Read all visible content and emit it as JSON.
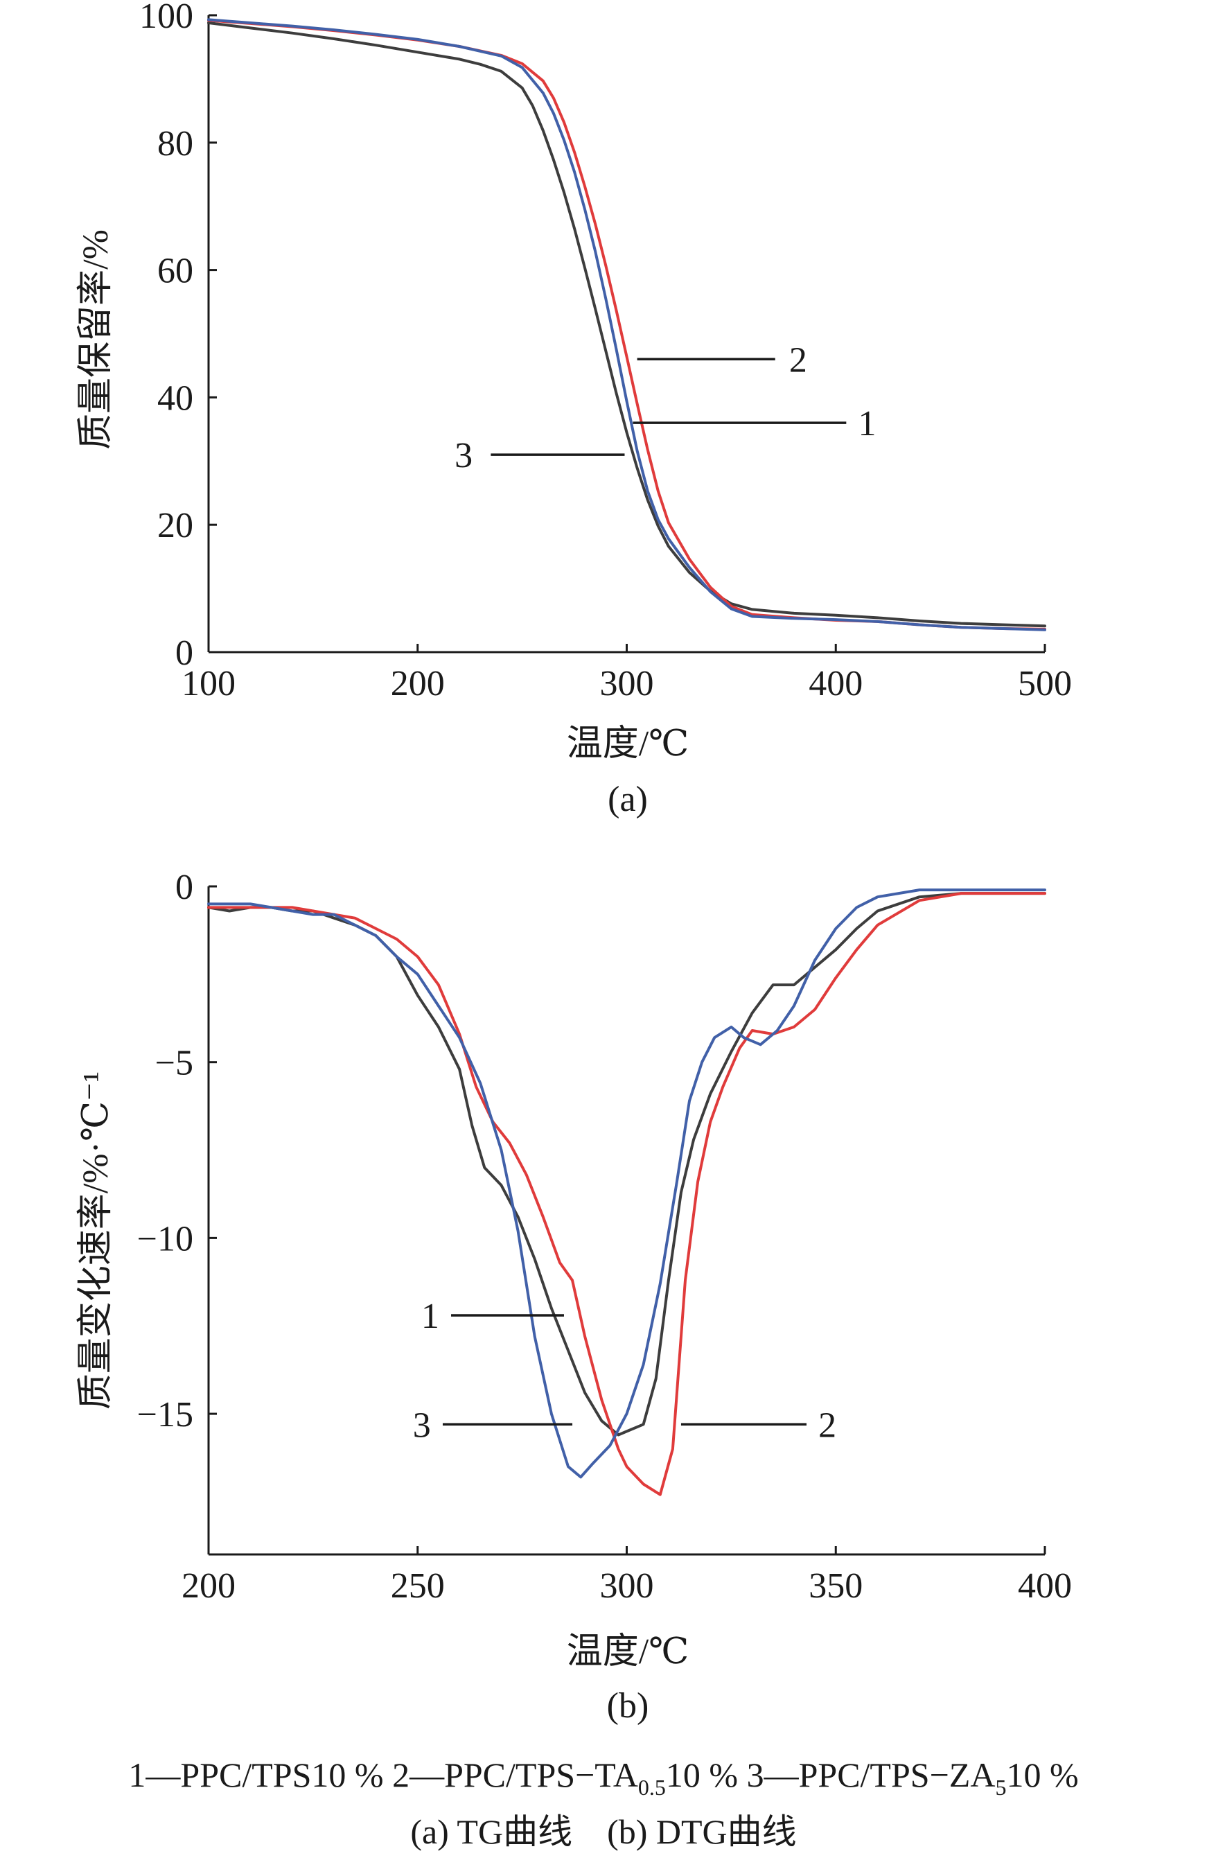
{
  "chart_data": [
    {
      "id": "a",
      "type": "line",
      "caption": "(a)",
      "xlabel": "温度/℃",
      "ylabel": "质量保留率/%",
      "xlim": [
        100,
        500
      ],
      "ylim": [
        0,
        100
      ],
      "xticks": [
        100,
        200,
        300,
        400,
        500
      ],
      "yticks": [
        0,
        20,
        40,
        60,
        80,
        100
      ],
      "grid": false,
      "series": [
        {
          "name": "1",
          "color": "#3d3d3d",
          "x": [
            100,
            120,
            140,
            160,
            180,
            200,
            220,
            230,
            240,
            250,
            255,
            260,
            265,
            270,
            275,
            280,
            285,
            290,
            295,
            300,
            305,
            310,
            315,
            320,
            330,
            340,
            350,
            360,
            380,
            400,
            420,
            440,
            460,
            480,
            500
          ],
          "y": [
            98.8,
            98,
            97.2,
            96.3,
            95.3,
            94.2,
            93.1,
            92.3,
            91.2,
            88.6,
            85.8,
            81.9,
            77.3,
            72.2,
            66.5,
            60.3,
            53.9,
            47.3,
            40.7,
            34.5,
            28.9,
            23.9,
            19.8,
            16.6,
            12.5,
            9.6,
            7.6,
            6.7,
            6.1,
            5.8,
            5.4,
            4.9,
            4.5,
            4.3,
            4.1
          ]
        },
        {
          "name": "2",
          "color": "#e03b3b",
          "x": [
            100,
            120,
            140,
            160,
            180,
            200,
            220,
            240,
            250,
            260,
            265,
            270,
            275,
            280,
            285,
            290,
            295,
            300,
            305,
            310,
            315,
            320,
            330,
            340,
            350,
            360,
            380,
            400,
            420,
            440,
            460,
            480,
            500
          ],
          "y": [
            99.2,
            98.7,
            98.2,
            97.6,
            96.9,
            96.1,
            95.1,
            93.7,
            92.4,
            89.7,
            87,
            83.2,
            78.5,
            73.1,
            67.2,
            60.7,
            53.7,
            46.4,
            39,
            31.8,
            25.3,
            20.3,
            14.6,
            10.2,
            7.2,
            5.9,
            5.4,
            5,
            4.8,
            4.3,
            3.9,
            3.7,
            3.6
          ]
        },
        {
          "name": "3",
          "color": "#4160a8",
          "x": [
            100,
            120,
            140,
            160,
            180,
            200,
            220,
            240,
            250,
            260,
            265,
            270,
            275,
            280,
            285,
            290,
            295,
            300,
            305,
            310,
            315,
            320,
            330,
            340,
            350,
            360,
            380,
            400,
            420,
            440,
            460,
            480,
            500
          ],
          "y": [
            99.3,
            98.8,
            98.3,
            97.7,
            97,
            96.2,
            95.1,
            93.6,
            91.8,
            87.8,
            84.6,
            80.4,
            75.4,
            69.5,
            62.9,
            55.5,
            47.6,
            39.4,
            31.6,
            25.3,
            20.8,
            17.8,
            13.3,
            9.5,
            6.8,
            5.6,
            5.3,
            5.1,
            4.8,
            4.3,
            3.9,
            3.7,
            3.5
          ]
        }
      ],
      "curve_labels": [
        {
          "text": "2",
          "target": 2
        },
        {
          "text": "1",
          "target": 1
        },
        {
          "text": "3",
          "target": 3
        }
      ]
    },
    {
      "id": "b",
      "type": "line",
      "caption": "(b)",
      "xlabel": "温度/℃",
      "ylabel": "质量变化速率/%·℃⁻¹",
      "xlim": [
        200,
        400
      ],
      "ylim": [
        -19,
        0
      ],
      "xticks": [
        200,
        250,
        300,
        350,
        400
      ],
      "yticks": [
        0,
        -5,
        -10,
        -15
      ],
      "ytick_labels": [
        "0",
        "−5",
        "−10",
        "−15"
      ],
      "grid": false,
      "series": [
        {
          "name": "1",
          "color": "#3d3d3d",
          "x": [
            200,
            205,
            210,
            215,
            220,
            225,
            230,
            235,
            240,
            245,
            250,
            255,
            260,
            263,
            266,
            270,
            274,
            278,
            282,
            286,
            290,
            294,
            298,
            300,
            304,
            307,
            310,
            313,
            316,
            320,
            325,
            330,
            335,
            340,
            345,
            350,
            355,
            360,
            370,
            380,
            390,
            400
          ],
          "y": [
            -0.6,
            -0.7,
            -0.6,
            -0.6,
            -0.7,
            -0.7,
            -0.9,
            -1.1,
            -1.4,
            -2,
            -3.1,
            -4,
            -5.2,
            -6.8,
            -8,
            -8.5,
            -9.4,
            -10.6,
            -12,
            -13.2,
            -14.4,
            -15.2,
            -15.6,
            -15.5,
            -15.3,
            -14,
            -11.2,
            -8.7,
            -7.2,
            -5.9,
            -4.7,
            -3.6,
            -2.8,
            -2.8,
            -2.3,
            -1.8,
            -1.2,
            -0.7,
            -0.3,
            -0.2,
            -0.2,
            -0.2
          ]
        },
        {
          "name": "2",
          "color": "#e03b3b",
          "x": [
            200,
            205,
            210,
            215,
            220,
            225,
            230,
            235,
            240,
            245,
            250,
            255,
            260,
            264,
            268,
            272,
            276,
            280,
            284,
            287,
            290,
            294,
            298,
            300,
            304,
            308,
            311,
            314,
            317,
            320,
            323,
            327,
            330,
            335,
            340,
            345,
            350,
            355,
            360,
            370,
            380,
            390,
            400
          ],
          "y": [
            -0.6,
            -0.6,
            -0.6,
            -0.6,
            -0.6,
            -0.7,
            -0.8,
            -0.9,
            -1.2,
            -1.5,
            -2,
            -2.8,
            -4.2,
            -5.7,
            -6.7,
            -7.3,
            -8.2,
            -9.4,
            -10.7,
            -11.2,
            -12.8,
            -14.6,
            -16,
            -16.5,
            -17,
            -17.3,
            -16,
            -11.2,
            -8.4,
            -6.7,
            -5.7,
            -4.6,
            -4.1,
            -4.2,
            -4,
            -3.5,
            -2.6,
            -1.8,
            -1.1,
            -0.4,
            -0.2,
            -0.2,
            -0.2
          ]
        },
        {
          "name": "3",
          "color": "#4160a8",
          "x": [
            200,
            205,
            210,
            215,
            220,
            225,
            230,
            235,
            240,
            245,
            250,
            255,
            260,
            265,
            270,
            274,
            278,
            282,
            286,
            289,
            292,
            296,
            300,
            304,
            308,
            312,
            315,
            318,
            321,
            325,
            328,
            332,
            336,
            340,
            345,
            350,
            355,
            360,
            370,
            380,
            390,
            400
          ],
          "y": [
            -0.5,
            -0.5,
            -0.5,
            -0.6,
            -0.7,
            -0.8,
            -0.8,
            -1.1,
            -1.4,
            -2,
            -2.5,
            -3.4,
            -4.3,
            -5.6,
            -7.5,
            -9.8,
            -12.8,
            -15,
            -16.5,
            -16.8,
            -16.4,
            -15.9,
            -15,
            -13.6,
            -11.3,
            -8.4,
            -6.1,
            -5,
            -4.3,
            -4,
            -4.3,
            -4.5,
            -4.1,
            -3.4,
            -2.1,
            -1.2,
            -0.6,
            -0.3,
            -0.1,
            -0.1,
            -0.1,
            -0.1
          ]
        }
      ],
      "curve_labels": [
        {
          "text": "1",
          "target": 1
        },
        {
          "text": "3",
          "target": 3
        },
        {
          "text": "2",
          "target": 2
        }
      ]
    }
  ],
  "legend": {
    "item1": {
      "prefix": "1—PPC/TPS10 %"
    },
    "item2": {
      "prefix": "2—PPC/TPS−TA",
      "sub": "0.5",
      "suffix": "10 %"
    },
    "item3": {
      "prefix": "3—PPC/TPS−ZA",
      "sub": "5",
      "suffix": "10 %"
    }
  },
  "caption": "(a) TG曲线    (b) DTG曲线"
}
